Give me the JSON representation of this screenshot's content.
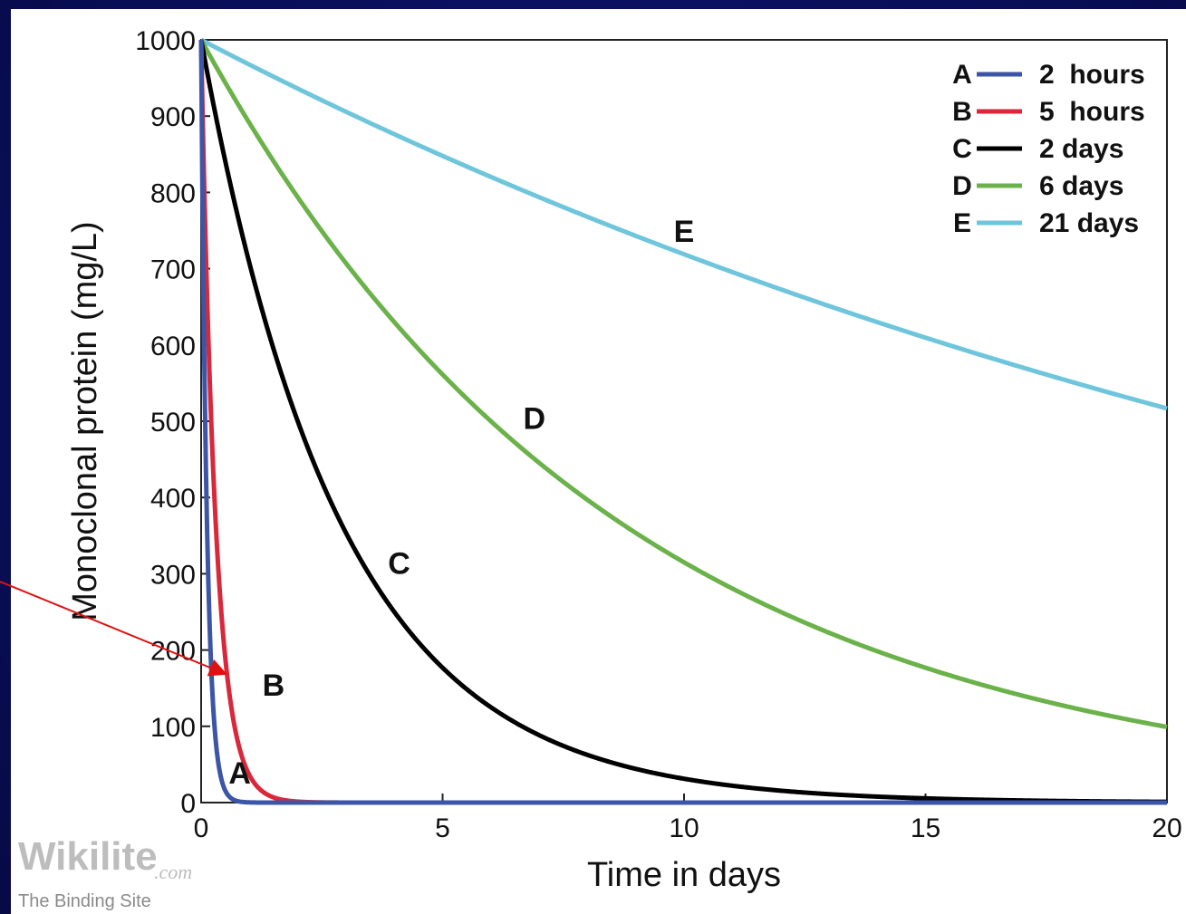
{
  "chart_data": {
    "type": "line",
    "title": "",
    "xlabel": "Time in days",
    "ylabel": "Monoclonal protein (mg/L)",
    "xlim": [
      0,
      20
    ],
    "ylim": [
      0,
      1000
    ],
    "x_ticks": [
      "0",
      "5",
      "10",
      "15",
      "20"
    ],
    "y_ticks": [
      "0",
      "100",
      "200",
      "300",
      "400",
      "500",
      "600",
      "700",
      "800",
      "900",
      "1000"
    ],
    "grid": false,
    "legend_position": "top-right",
    "initial_value": 1000,
    "series": [
      {
        "letter": "A",
        "name": "2  hours",
        "half_life_days": 0.0833,
        "color": "#3d55a6",
        "label_at": [
          0.8,
          25
        ]
      },
      {
        "letter": "B",
        "name": "5  hours",
        "half_life_days": 0.2083,
        "color": "#d8283a",
        "label_at": [
          1.5,
          140
        ]
      },
      {
        "letter": "C",
        "name": "2 days",
        "half_life_days": 2,
        "color": "#000000",
        "label_at": [
          4.1,
          300
        ]
      },
      {
        "letter": "D",
        "name": "6 days",
        "half_life_days": 6,
        "color": "#6bb24a",
        "label_at": [
          6.9,
          490
        ]
      },
      {
        "letter": "E",
        "name": "21 days",
        "half_life_days": 21,
        "color": "#6fc6dc",
        "label_at": [
          10.0,
          735
        ]
      }
    ],
    "annotation_arrow": {
      "color": "#e01010",
      "target_series": "B"
    }
  },
  "watermark": {
    "brand": "Wikilite",
    "domain": ".com",
    "tagline": "The Binding Site"
  }
}
